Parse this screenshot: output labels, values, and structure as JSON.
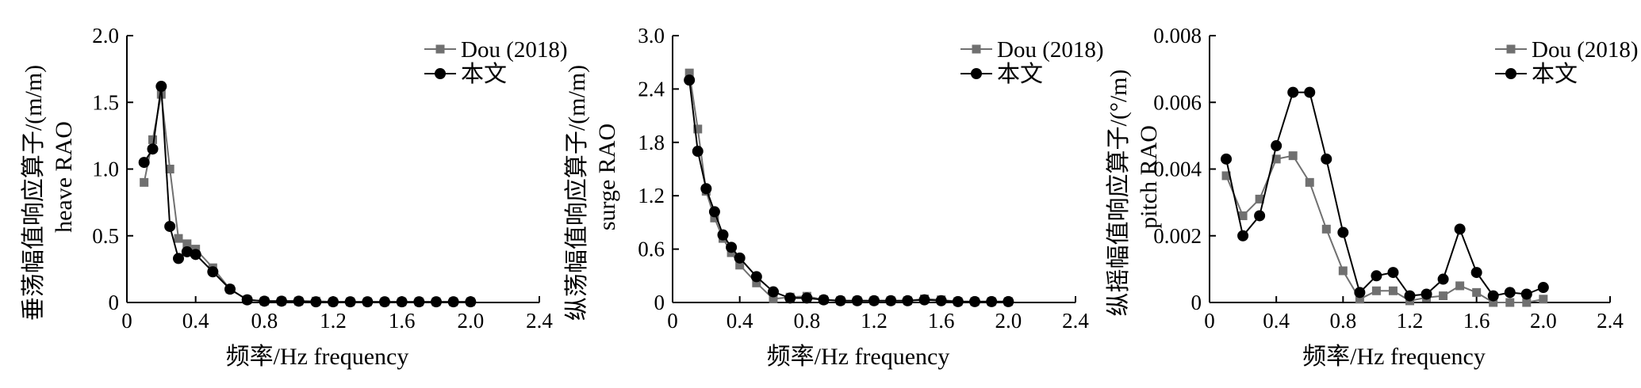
{
  "chart_data": [
    {
      "type": "line",
      "xlabel": "频率/Hz frequency",
      "ylabel_cn": "垂荡幅值响应算子/(m/m)",
      "ylabel_en": "heave RAO",
      "xlim": [
        0,
        2.4
      ],
      "ylim": [
        0,
        2.0
      ],
      "xticks": [
        0,
        0.4,
        0.8,
        1.2,
        1.6,
        2.0,
        2.4
      ],
      "xticklabels": [
        "0",
        "0.4",
        "0.8",
        "1.2",
        "1.6",
        "2.0",
        "2.4"
      ],
      "yticks": [
        0,
        0.5,
        1.0,
        1.5,
        2.0
      ],
      "yticklabels": [
        "0",
        "0.5",
        "1.0",
        "1.5",
        "2.0"
      ],
      "grid": false,
      "legend_position": "top-right",
      "series": [
        {
          "name": "Dou (2018)",
          "marker": "square",
          "color": "#707070",
          "x": [
            0.1,
            0.15,
            0.2,
            0.25,
            0.3,
            0.35,
            0.4,
            0.5,
            0.6,
            0.7,
            0.8,
            0.9,
            1.0,
            1.1,
            1.2,
            1.3,
            1.4,
            1.5,
            1.6,
            1.7,
            1.8,
            1.9,
            2.0
          ],
          "y": [
            0.9,
            1.22,
            1.56,
            1.0,
            0.48,
            0.44,
            0.4,
            0.26,
            0.1,
            0.02,
            0.01,
            0.01,
            0.01,
            0.01,
            0.005,
            0.005,
            0.005,
            0.005,
            0.005,
            0.005,
            0.005,
            0.005,
            0.005
          ]
        },
        {
          "name": "本文",
          "marker": "circle",
          "color": "#000000",
          "x": [
            0.1,
            0.15,
            0.2,
            0.25,
            0.3,
            0.35,
            0.4,
            0.5,
            0.6,
            0.7,
            0.8,
            0.9,
            1.0,
            1.1,
            1.2,
            1.3,
            1.4,
            1.5,
            1.6,
            1.7,
            1.8,
            1.9,
            2.0
          ],
          "y": [
            1.05,
            1.15,
            1.62,
            0.57,
            0.33,
            0.38,
            0.36,
            0.23,
            0.1,
            0.02,
            0.01,
            0.01,
            0.01,
            0.005,
            0.005,
            0.005,
            0.005,
            0.005,
            0.005,
            0.005,
            0.005,
            0.005,
            0.005
          ]
        }
      ]
    },
    {
      "type": "line",
      "xlabel": "频率/Hz frequency",
      "ylabel_cn": "纵荡幅值响应算子/(m/m)",
      "ylabel_en": "surge RAO",
      "xlim": [
        0,
        2.4
      ],
      "ylim": [
        0,
        3.0
      ],
      "xticks": [
        0,
        0.4,
        0.8,
        1.2,
        1.6,
        2.0,
        2.4
      ],
      "xticklabels": [
        "0",
        "0.4",
        "0.8",
        "1.2",
        "1.6",
        "2.0",
        "2.4"
      ],
      "yticks": [
        0,
        0.6,
        1.2,
        1.8,
        2.4,
        3.0
      ],
      "yticklabels": [
        "0",
        "0.6",
        "1.2",
        "1.8",
        "2.4",
        "3.0"
      ],
      "grid": false,
      "legend_position": "top-right",
      "series": [
        {
          "name": "Dou (2018)",
          "marker": "square",
          "color": "#707070",
          "x": [
            0.1,
            0.15,
            0.2,
            0.25,
            0.3,
            0.35,
            0.4,
            0.5,
            0.6,
            0.7,
            0.8,
            0.9,
            1.0,
            1.1,
            1.2,
            1.3,
            1.4,
            1.5,
            1.6,
            1.7,
            1.8,
            1.9,
            2.0
          ],
          "y": [
            2.58,
            1.95,
            1.25,
            0.95,
            0.72,
            0.56,
            0.42,
            0.22,
            0.04,
            0.06,
            0.07,
            0.03,
            0.02,
            0.02,
            0.02,
            0.02,
            0.02,
            0.04,
            0.03,
            0.01,
            0.01,
            0.01,
            0.01
          ]
        },
        {
          "name": "本文",
          "marker": "circle",
          "color": "#000000",
          "x": [
            0.1,
            0.15,
            0.2,
            0.25,
            0.3,
            0.35,
            0.4,
            0.5,
            0.6,
            0.7,
            0.8,
            0.9,
            1.0,
            1.1,
            1.2,
            1.3,
            1.4,
            1.5,
            1.6,
            1.7,
            1.8,
            1.9,
            2.0
          ],
          "y": [
            2.5,
            1.7,
            1.28,
            1.02,
            0.76,
            0.62,
            0.5,
            0.29,
            0.12,
            0.05,
            0.05,
            0.03,
            0.02,
            0.02,
            0.02,
            0.02,
            0.02,
            0.03,
            0.02,
            0.01,
            0.01,
            0.01,
            0.01
          ]
        }
      ]
    },
    {
      "type": "line",
      "xlabel": "频率/Hz frequency",
      "ylabel_cn": "纵摇幅值响应算子/(°/m)",
      "ylabel_en": "pitch RAO",
      "xlim": [
        0,
        2.4
      ],
      "ylim": [
        0,
        0.008
      ],
      "xticks": [
        0,
        0.4,
        0.8,
        1.2,
        1.6,
        2.0,
        2.4
      ],
      "xticklabels": [
        "0",
        "0.4",
        "0.8",
        "1.2",
        "1.6",
        "2.0",
        "2.4"
      ],
      "yticks": [
        0,
        0.002,
        0.004,
        0.006,
        0.008
      ],
      "yticklabels": [
        "0",
        "0.002",
        "0.004",
        "0.006",
        "0.008"
      ],
      "grid": false,
      "legend_position": "top-right",
      "series": [
        {
          "name": "Dou (2018)",
          "marker": "square",
          "color": "#707070",
          "x": [
            0.1,
            0.2,
            0.3,
            0.4,
            0.5,
            0.6,
            0.7,
            0.8,
            0.9,
            1.0,
            1.1,
            1.2,
            1.3,
            1.4,
            1.5,
            1.6,
            1.7,
            1.8,
            1.9,
            2.0
          ],
          "y": [
            0.0038,
            0.0026,
            0.0031,
            0.0043,
            0.0044,
            0.0036,
            0.0022,
            0.00095,
            0.0001,
            0.00035,
            0.00035,
            5e-05,
            0.00015,
            0.0002,
            0.0005,
            0.0003,
            0.0,
            0.0,
            0.0,
            0.0001
          ]
        },
        {
          "name": "本文",
          "marker": "circle",
          "color": "#000000",
          "x": [
            0.1,
            0.2,
            0.3,
            0.4,
            0.5,
            0.6,
            0.7,
            0.8,
            0.9,
            1.0,
            1.1,
            1.2,
            1.3,
            1.4,
            1.5,
            1.6,
            1.7,
            1.8,
            1.9,
            2.0
          ],
          "y": [
            0.0043,
            0.002,
            0.0026,
            0.0047,
            0.0063,
            0.0063,
            0.0043,
            0.0021,
            0.0003,
            0.0008,
            0.0009,
            0.0002,
            0.00025,
            0.0007,
            0.0022,
            0.0009,
            0.0002,
            0.0003,
            0.00025,
            0.00045
          ]
        }
      ]
    }
  ]
}
